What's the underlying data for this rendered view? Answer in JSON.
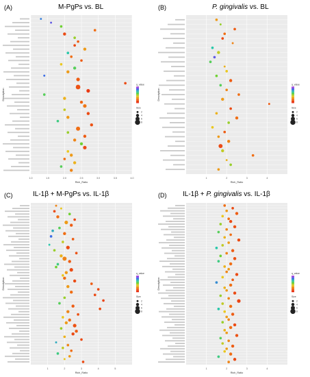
{
  "figure": {
    "panels": [
      {
        "label": "(A)",
        "title": "M-PgPs vs. BL",
        "title_italic": ""
      },
      {
        "label": "(B)",
        "title": " vs. BL",
        "title_italic": "P. gingivalis"
      },
      {
        "label": "(C)",
        "title": "IL-1β + M-PgPs vs. IL-1β",
        "title_italic": ""
      },
      {
        "label": "(D)",
        "title": "IL-1β +  vs. IL-1β",
        "title_italic": "P. gingivalis"
      }
    ]
  },
  "chart_data": [
    {
      "type": "scatter",
      "title": "M-PgPs vs. BL",
      "xlabel": "Rich_Ratio",
      "ylabel": "Description",
      "xlim": [
        1.0,
        4.0
      ],
      "x_ticks": [
        "1.0",
        "1.5",
        "2.0",
        "2.5",
        "3.0",
        "3.5",
        "4.0"
      ],
      "grid": true,
      "legend": {
        "color_title": "q_value",
        "size_title": "Size",
        "size_values": [
          2,
          4,
          6,
          8
        ]
      },
      "points_x": [
        1.3,
        1.6,
        1.9,
        2.9,
        2.0,
        2.3,
        2.4,
        2.3,
        2.6,
        2.1,
        2.2,
        2.5,
        1.9,
        2.3,
        2.1,
        1.4,
        2.4,
        3.8,
        2.4,
        2.7,
        1.4,
        2.0,
        2.5,
        2.6,
        2.0,
        2.7,
        2.1,
        1.8,
        2.8,
        2.4,
        2.1,
        2.6,
        2.3,
        2.5,
        2.6,
        2.1,
        2.2,
        2.0,
        2.3,
        1.9,
        2.2
      ],
      "points_color": [
        0.82,
        0.9,
        0.55,
        0.2,
        0.1,
        0.5,
        0.15,
        0.1,
        0.3,
        0.7,
        0.2,
        0.15,
        0.4,
        0.6,
        0.3,
        0.85,
        0.15,
        0.1,
        0.12,
        0.05,
        0.6,
        0.35,
        0.18,
        0.22,
        0.45,
        0.1,
        0.3,
        0.65,
        0.12,
        0.2,
        0.5,
        0.15,
        0.25,
        0.55,
        0.1,
        0.4,
        0.3,
        0.2,
        0.35,
        0.6,
        0.25
      ],
      "points_size": [
        2,
        2,
        3,
        3,
        4,
        3,
        3,
        3,
        4,
        3,
        3,
        3,
        3,
        4,
        4,
        2,
        5,
        3,
        7,
        5,
        3,
        4,
        4,
        5,
        3,
        4,
        4,
        3,
        4,
        6,
        3,
        4,
        4,
        4,
        5,
        3,
        4,
        3,
        4,
        3,
        4
      ]
    },
    {
      "type": "scatter",
      "title": "P. gingivalis vs. BL",
      "xlabel": "Rich_Ratio",
      "ylabel": "Description",
      "xlim": [
        0,
        5
      ],
      "x_ticks": [
        "1",
        "2",
        "3",
        "4"
      ],
      "grid": true,
      "legend": {
        "color_title": "q_value",
        "size_title": "Size",
        "size_values": [
          2,
          4,
          6,
          8
        ]
      },
      "points_x": [
        1.5,
        1.7,
        2.4,
        1.9,
        1.8,
        2.3,
        1.3,
        1.6,
        1.4,
        1.2,
        1.9,
        2.0,
        1.5,
        2.2,
        1.7,
        2.0,
        2.6,
        1.8,
        4.1,
        2.2,
        1.5,
        2.5,
        2.1,
        1.3,
        1.9,
        1.6,
        2.1,
        1.7,
        1.8,
        3.3,
        2.0,
        2.2,
        1.6
      ],
      "points_color": [
        0.3,
        0.5,
        0.15,
        0.2,
        0.1,
        0.25,
        0.7,
        0.45,
        0.9,
        0.6,
        0.35,
        0.4,
        0.55,
        0.15,
        0.6,
        0.25,
        0.2,
        0.3,
        0.15,
        0.1,
        0.35,
        0.2,
        0.5,
        0.4,
        0.15,
        0.3,
        0.25,
        0.1,
        0.45,
        0.2,
        0.35,
        0.5,
        0.3
      ],
      "points_size": [
        3,
        2,
        3,
        3,
        3,
        2,
        3,
        4,
        3,
        3,
        2,
        3,
        3,
        4,
        3,
        3,
        3,
        4,
        2,
        3,
        3,
        4,
        3,
        3,
        3,
        3,
        4,
        6,
        4,
        3,
        2,
        3,
        3
      ]
    },
    {
      "type": "scatter",
      "title": "IL-1β + M-PgPs vs. IL-1β",
      "xlabel": "Rich_Ratio",
      "ylabel": "Description",
      "xlim": [
        0,
        6
      ],
      "x_ticks": [
        "1",
        "2",
        "3",
        "4",
        "5"
      ],
      "grid": true,
      "legend": {
        "color_title": "q_value",
        "size_title": "Size",
        "size_values": [
          2,
          4,
          6,
          8
        ]
      },
      "points_x": [
        1.5,
        1.8,
        1.4,
        2.3,
        1.6,
        2.6,
        2.1,
        2.4,
        1.7,
        1.3,
        2.0,
        1.2,
        2.5,
        1.9,
        1.1,
        2.2,
        1.4,
        2.7,
        1.8,
        2.0,
        2.3,
        1.6,
        1.5,
        2.4,
        2.1,
        1.9,
        2.0,
        2.6,
        3.6,
        2.2,
        4.0,
        2.4,
        3.8,
        2.0,
        4.3,
        1.7,
        2.5,
        4.1,
        2.2,
        2.8,
        1.9,
        2.3,
        2.1,
        2.6,
        1.8,
        2.7,
        2.5,
        2.0,
        3.0,
        1.5,
        2.2,
        1.9,
        2.4,
        1.6,
        2.3,
        2.0,
        3.1
      ],
      "points_color": [
        0.25,
        0.4,
        0.1,
        0.55,
        0.2,
        0.1,
        0.3,
        0.15,
        0.6,
        0.75,
        0.2,
        0.85,
        0.15,
        0.45,
        0.7,
        0.1,
        0.5,
        0.12,
        0.35,
        0.25,
        0.15,
        0.65,
        0.55,
        0.1,
        0.3,
        0.4,
        0.2,
        0.1,
        0.15,
        0.3,
        0.1,
        0.2,
        0.1,
        0.5,
        0.08,
        0.6,
        0.15,
        0.1,
        0.25,
        0.12,
        0.4,
        0.2,
        0.3,
        0.12,
        0.5,
        0.15,
        0.1,
        0.35,
        0.1,
        0.75,
        0.25,
        0.45,
        0.2,
        0.65,
        0.3,
        0.4,
        0.1
      ],
      "points_size": [
        2,
        2,
        3,
        3,
        4,
        3,
        5,
        4,
        3,
        3,
        4,
        3,
        3,
        3,
        2,
        5,
        3,
        3,
        4,
        6,
        4,
        3,
        3,
        5,
        4,
        3,
        4,
        4,
        3,
        4,
        3,
        4,
        3,
        3,
        3,
        3,
        4,
        3,
        4,
        3,
        3,
        4,
        4,
        5,
        3,
        4,
        4,
        3,
        3,
        2,
        3,
        3,
        3,
        3,
        3,
        2,
        3
      ]
    },
    {
      "type": "scatter",
      "title": "IL-1β + P. gingivalis vs. IL-1β",
      "xlabel": "Rich_Ratio",
      "ylabel": "Description",
      "xlim": [
        0,
        5
      ],
      "x_ticks": [
        "1",
        "2",
        "3",
        "4"
      ],
      "grid": true,
      "legend": {
        "color_title": "q_value",
        "size_title": "Size",
        "size_values": [
          2,
          4,
          6,
          8
        ]
      },
      "points_x": [
        1.9,
        2.3,
        2.0,
        2.5,
        1.8,
        2.1,
        2.2,
        1.7,
        2.4,
        2.0,
        1.6,
        2.2,
        1.9,
        2.6,
        2.1,
        1.8,
        1.5,
        2.3,
        2.0,
        1.7,
        2.4,
        1.6,
        2.2,
        1.9,
        2.1,
        2.0,
        2.5,
        1.8,
        2.3,
        1.5,
        2.2,
        1.9,
        2.0,
        2.4,
        1.7,
        2.1,
        2.6,
        1.8,
        2.2,
        1.6,
        1.9,
        2.3,
        2.0,
        2.1,
        1.8,
        2.4,
        2.2,
        1.9,
        2.0,
        2.5,
        1.7,
        2.1,
        1.8,
        2.3,
        2.0,
        1.9,
        2.2,
        1.6,
        2.4,
        2.1
      ],
      "points_color": [
        0.2,
        0.1,
        0.3,
        0.15,
        0.4,
        0.2,
        0.1,
        0.5,
        0.12,
        0.25,
        0.6,
        0.2,
        0.35,
        0.1,
        0.3,
        0.45,
        0.7,
        0.15,
        0.25,
        0.55,
        0.12,
        0.65,
        0.2,
        0.35,
        0.3,
        0.25,
        0.1,
        0.4,
        0.15,
        0.8,
        0.2,
        0.35,
        0.3,
        0.1,
        0.5,
        0.25,
        0.08,
        0.45,
        0.2,
        0.7,
        0.4,
        0.15,
        0.3,
        0.25,
        0.5,
        0.1,
        0.2,
        0.35,
        0.3,
        0.12,
        0.6,
        0.25,
        0.45,
        0.15,
        0.3,
        0.4,
        0.2,
        0.65,
        0.1,
        0.25
      ],
      "points_size": [
        3,
        3,
        3,
        4,
        3,
        3,
        4,
        3,
        4,
        3,
        3,
        3,
        3,
        4,
        3,
        3,
        3,
        4,
        3,
        3,
        4,
        3,
        4,
        3,
        3,
        3,
        4,
        3,
        3,
        3,
        4,
        3,
        3,
        4,
        3,
        3,
        5,
        3,
        4,
        3,
        3,
        4,
        3,
        3,
        3,
        4,
        4,
        3,
        3,
        4,
        3,
        3,
        3,
        4,
        3,
        3,
        4,
        3,
        4,
        3
      ]
    }
  ]
}
